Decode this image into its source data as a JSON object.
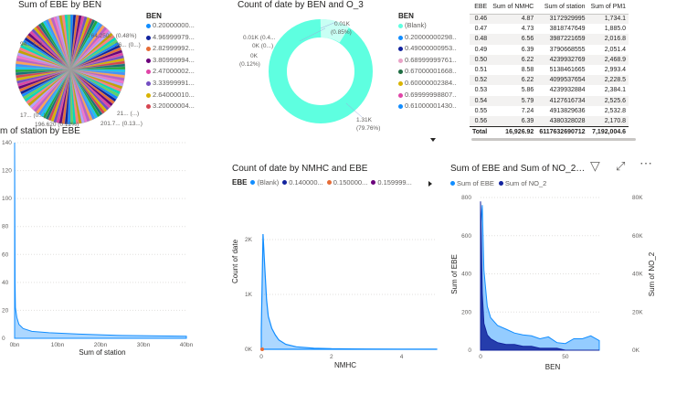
{
  "pie_ebe": {
    "title": "Sum of EBE by BEN",
    "legend_title": "BEN",
    "legend_items": [
      {
        "label": "0.20000000...",
        "color": "#118dff"
      },
      {
        "label": "4.96999979...",
        "color": "#12239e"
      },
      {
        "label": "2.82999992...",
        "color": "#e66c37"
      },
      {
        "label": "3.80999994...",
        "color": "#6b007b"
      },
      {
        "label": "2.47000002...",
        "color": "#e044a7"
      },
      {
        "label": "3.33999991...",
        "color": "#744ec2"
      },
      {
        "label": "2.64000010...",
        "color": "#d9b300"
      },
      {
        "label": "3.20000004...",
        "color": "#d64550"
      }
    ],
    "slice_labels": [
      "764,250... (0.48%)",
      "26... (0...)",
      "94... (...)",
      "17... (0...)",
      "21... (...)",
      "196.620 (0.12%)",
      "201.7... (0.13...)"
    ]
  },
  "donut_date": {
    "title": "Count of date by BEN and O_3",
    "legend_title": "BEN",
    "legend_items": [
      {
        "label": "(Blank)",
        "color": "#5effe0"
      },
      {
        "label": "0.20000000298...",
        "color": "#118dff"
      },
      {
        "label": "0.49000000953...",
        "color": "#12239e"
      },
      {
        "label": "0.68999999761...",
        "color": "#e9a3c7"
      },
      {
        "label": "0.67000001668...",
        "color": "#1f6e43"
      },
      {
        "label": "0.60000002384...",
        "color": "#d9b300"
      },
      {
        "label": "0.69999998807...",
        "color": "#e044a7"
      },
      {
        "label": "0.61000001430...",
        "color": "#118dff"
      }
    ],
    "labels": {
      "top": "0.01K",
      "top_pct": "(0.85%)",
      "a": "0.01K (0.4...",
      "b": "0K (0...)",
      "c": "0K",
      "d": "(0.12%)",
      "main": "1.31K",
      "main_pct": "(79.76%)"
    }
  },
  "matrix": {
    "columns": [
      "EBE",
      "Sum of NMHC",
      "Sum of station",
      "Sum of PM1"
    ],
    "rows": [
      [
        "0.46",
        "4.87",
        "3172929995",
        "1,734.1"
      ],
      [
        "0.47",
        "4.73",
        "3818747649",
        "1,885.0"
      ],
      [
        "0.48",
        "6.56",
        "3987221659",
        "2,016.8"
      ],
      [
        "0.49",
        "6.39",
        "3790668555",
        "2,051.4"
      ],
      [
        "0.50",
        "6.22",
        "4239932769",
        "2,468.9"
      ],
      [
        "0.51",
        "8.58",
        "5138461665",
        "2,993.4"
      ],
      [
        "0.52",
        "6.22",
        "4099537654",
        "2,228.5"
      ],
      [
        "0.53",
        "5.86",
        "4239932884",
        "2,384.1"
      ],
      [
        "0.54",
        "5.79",
        "4127616734",
        "2,525.6"
      ],
      [
        "0.55",
        "7.24",
        "4913829636",
        "2,532.8"
      ],
      [
        "0.56",
        "6.39",
        "4380328028",
        "2,170.8"
      ]
    ],
    "total": [
      "Total",
      "16,926.92",
      "6117632690712",
      "7,192,004.6"
    ]
  },
  "station_chart": {
    "title": "m of station by EBE",
    "xlabel": "Sum of station",
    "y_ticks": [
      "140",
      "120",
      "100",
      "80",
      "60",
      "40",
      "20",
      "0"
    ],
    "x_ticks": [
      "0bn",
      "10bn",
      "20bn",
      "30bn",
      "40bn"
    ]
  },
  "nmhc_chart": {
    "title": "Count of date by NMHC and EBE",
    "legend_title": "EBE",
    "legend_items": [
      {
        "label": "(Blank)",
        "color": "#118dff"
      },
      {
        "label": "0.140000...",
        "color": "#12239e"
      },
      {
        "label": "0.150000...",
        "color": "#e66c37"
      },
      {
        "label": "0.159999...",
        "color": "#6b007b"
      }
    ],
    "xlabel": "NMHC",
    "ylabel": "Count of date",
    "y_ticks": [
      "2K",
      "1K",
      "0K"
    ],
    "x_ticks": [
      "0",
      "2",
      "4"
    ]
  },
  "combo_chart": {
    "title": "Sum of EBE and Sum of NO_2 by BEN",
    "legend_items": [
      {
        "label": "Sum of EBE",
        "color": "#118dff"
      },
      {
        "label": "Sum of NO_2",
        "color": "#12239e"
      }
    ],
    "xlabel": "BEN",
    "ylabel_left": "Sum of EBE",
    "ylabel_right": "Sum of NO_2",
    "y_ticks_left": [
      "800",
      "600",
      "400",
      "200",
      "0"
    ],
    "y_ticks_right": [
      "80K",
      "60K",
      "40K",
      "20K",
      "0K"
    ],
    "x_ticks": [
      "0",
      "50"
    ]
  },
  "chart_data": [
    {
      "type": "pie",
      "title": "Sum of EBE by BEN",
      "legend": [
        "0.20000000...",
        "4.96999979...",
        "2.82999992...",
        "3.80999994...",
        "2.47000002...",
        "3.33999991...",
        "2.64000010...",
        "3.20000004..."
      ],
      "annotations": [
        "764,250... (0.48%)",
        "196.620 (0.12%)",
        "201.7... (0.13...)"
      ]
    },
    {
      "type": "pie",
      "title": "Count of date by BEN and O_3",
      "series": [
        {
          "name": "(Blank)",
          "values": [
            1310
          ]
        }
      ],
      "annotations": [
        "1.31K (79.76%)",
        "0.01K (0.85%)",
        "(0.12%)"
      ]
    },
    {
      "type": "area",
      "title": "Count of date by NMHC and EBE",
      "xlabel": "NMHC",
      "ylabel": "Count of date",
      "ylim": [
        0,
        2400
      ],
      "xlim": [
        0,
        5
      ],
      "x": [
        0.0,
        0.05,
        0.1,
        0.15,
        0.2,
        0.3,
        0.4,
        0.5,
        0.7,
        1.0,
        1.5,
        2.0,
        3.0,
        4.0,
        5.0
      ],
      "series": [
        {
          "name": "(Blank)",
          "values": [
            350,
            2100,
            1500,
            900,
            600,
            380,
            260,
            170,
            90,
            45,
            20,
            10,
            5,
            3,
            1
          ]
        }
      ]
    },
    {
      "type": "area",
      "title": "Sum of EBE and Sum of NO_2 by BEN",
      "xlabel": "BEN",
      "ylim": [
        0,
        800
      ],
      "xlim": [
        0,
        70
      ],
      "x": [
        0,
        1,
        2,
        4,
        6,
        10,
        15,
        20,
        25,
        30,
        35,
        40,
        45,
        50,
        55,
        60,
        65,
        70
      ],
      "series": [
        {
          "name": "Sum of EBE",
          "values": [
            640,
            760,
            420,
            230,
            170,
            130,
            110,
            90,
            80,
            75,
            60,
            70,
            40,
            35,
            60,
            60,
            75,
            50
          ]
        },
        {
          "name": "Sum of NO_2",
          "values": [
            78,
            30,
            14,
            8,
            6,
            4,
            3,
            3,
            2,
            2,
            1,
            1,
            1,
            0,
            0,
            0,
            0,
            0
          ]
        }
      ]
    },
    {
      "type": "area",
      "title": "m of station by EBE",
      "xlabel": "Sum of station",
      "ylim": [
        0,
        140
      ],
      "xlim": [
        0,
        40
      ],
      "x": [
        0,
        0.1,
        0.2,
        0.5,
        1,
        2,
        4,
        8,
        15,
        25,
        40
      ],
      "series": [
        {
          "name": "",
          "values": [
            140,
            40,
            22,
            15,
            10,
            7,
            5,
            4,
            3,
            2,
            1.5
          ]
        }
      ]
    }
  ]
}
